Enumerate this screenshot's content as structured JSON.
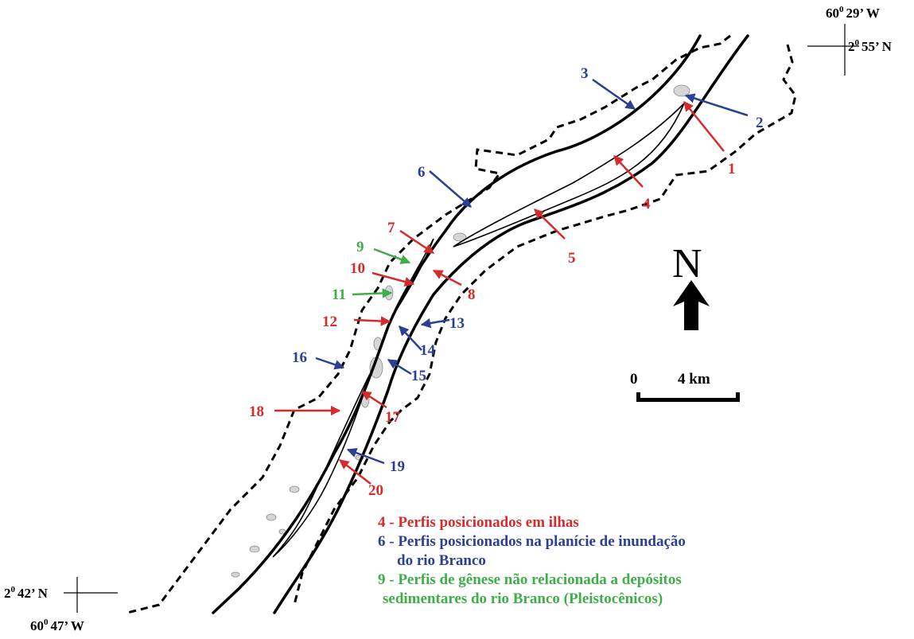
{
  "colors": {
    "island": "#d42b2b",
    "floodplain": "#2b3f93",
    "pleistocene": "#3fae49",
    "river": "#000000",
    "bar": "#d6d6d6"
  },
  "coordinates": {
    "ne_lon": "60",
    "ne_lon_min": "29’ W",
    "ne_lat": "2",
    "ne_lat_min": "55’ N",
    "sw_lat": "2",
    "sw_lat_min": "42’ N",
    "sw_lon": "60",
    "sw_lon_min": "47’ W",
    "degree_mark": "0"
  },
  "north_arrow": {
    "letter": "N"
  },
  "scale_bar": {
    "start_label": "0",
    "end_label": "4 km"
  },
  "markers": [
    {
      "label": "1",
      "category": "island"
    },
    {
      "label": "2",
      "category": "floodplain"
    },
    {
      "label": "3",
      "category": "floodplain"
    },
    {
      "label": "4",
      "category": "island"
    },
    {
      "label": "5",
      "category": "island"
    },
    {
      "label": "6",
      "category": "floodplain"
    },
    {
      "label": "7",
      "category": "island"
    },
    {
      "label": "8",
      "category": "island"
    },
    {
      "label": "9",
      "category": "pleistocene"
    },
    {
      "label": "10",
      "category": "island"
    },
    {
      "label": "11",
      "category": "pleistocene"
    },
    {
      "label": "12",
      "category": "island"
    },
    {
      "label": "13",
      "category": "floodplain"
    },
    {
      "label": "14",
      "category": "floodplain"
    },
    {
      "label": "15",
      "category": "floodplain"
    },
    {
      "label": "16",
      "category": "floodplain"
    },
    {
      "label": "17",
      "category": "island"
    },
    {
      "label": "18",
      "category": "island"
    },
    {
      "label": "19",
      "category": "floodplain"
    },
    {
      "label": "20",
      "category": "island"
    }
  ],
  "legend": {
    "line1": "4 - Perfis posicionados em ilhas",
    "line2": "6 - Perfis posicionados na planície de inundação",
    "line3": "do rio Branco",
    "line4": "9 - Perfis de gênese não relacionada a depósitos",
    "line5": "sedimentares do rio Branco (Pleistocênicos)"
  }
}
